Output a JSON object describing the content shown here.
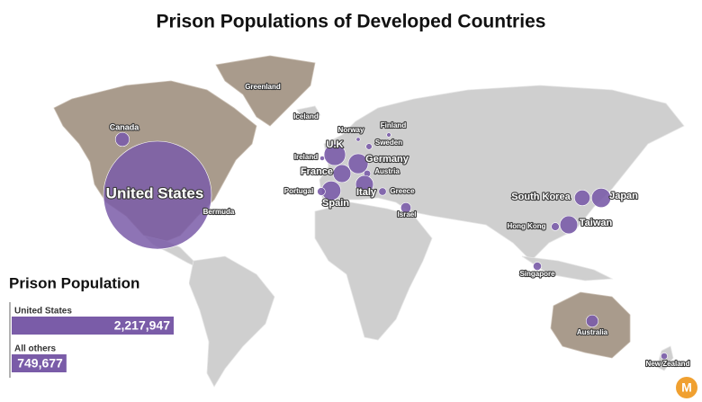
{
  "title": "Prison Populations of Developed Countries",
  "countries": [
    {
      "name": "United States",
      "value": 2217947
    },
    {
      "name": "Canada",
      "value": 37000
    },
    {
      "name": "Greenland",
      "value": 150
    },
    {
      "name": "Iceland",
      "value": 150
    },
    {
      "name": "Bermuda",
      "value": 400
    },
    {
      "name": "U.K",
      "value": 88000
    },
    {
      "name": "Ireland",
      "value": 4000
    },
    {
      "name": "France",
      "value": 60000
    },
    {
      "name": "Germany",
      "value": 75000
    },
    {
      "name": "Norway",
      "value": 3000
    },
    {
      "name": "Sweden",
      "value": 7000
    },
    {
      "name": "Finland",
      "value": 3500
    },
    {
      "name": "Austria",
      "value": 9000
    },
    {
      "name": "Italy",
      "value": 60000
    },
    {
      "name": "Spain",
      "value": 70000
    },
    {
      "name": "Portugal",
      "value": 12000
    },
    {
      "name": "Greece",
      "value": 11000
    },
    {
      "name": "Israel",
      "value": 20000
    },
    {
      "name": "South Korea",
      "value": 46000
    },
    {
      "name": "Japan",
      "value": 70000
    },
    {
      "name": "Taiwan",
      "value": 60000
    },
    {
      "name": "Hong Kong",
      "value": 12000
    },
    {
      "name": "Singapore",
      "value": 13000
    },
    {
      "name": "Australia",
      "value": 28000
    },
    {
      "name": "New Zealand",
      "value": 8000
    }
  ],
  "legend": {
    "title": "Prison Population",
    "bars": [
      {
        "name": "United States",
        "value": 2217947,
        "label": "2,217,947"
      },
      {
        "name": "All others",
        "value": 749677,
        "label": "749,677"
      }
    ]
  }
}
